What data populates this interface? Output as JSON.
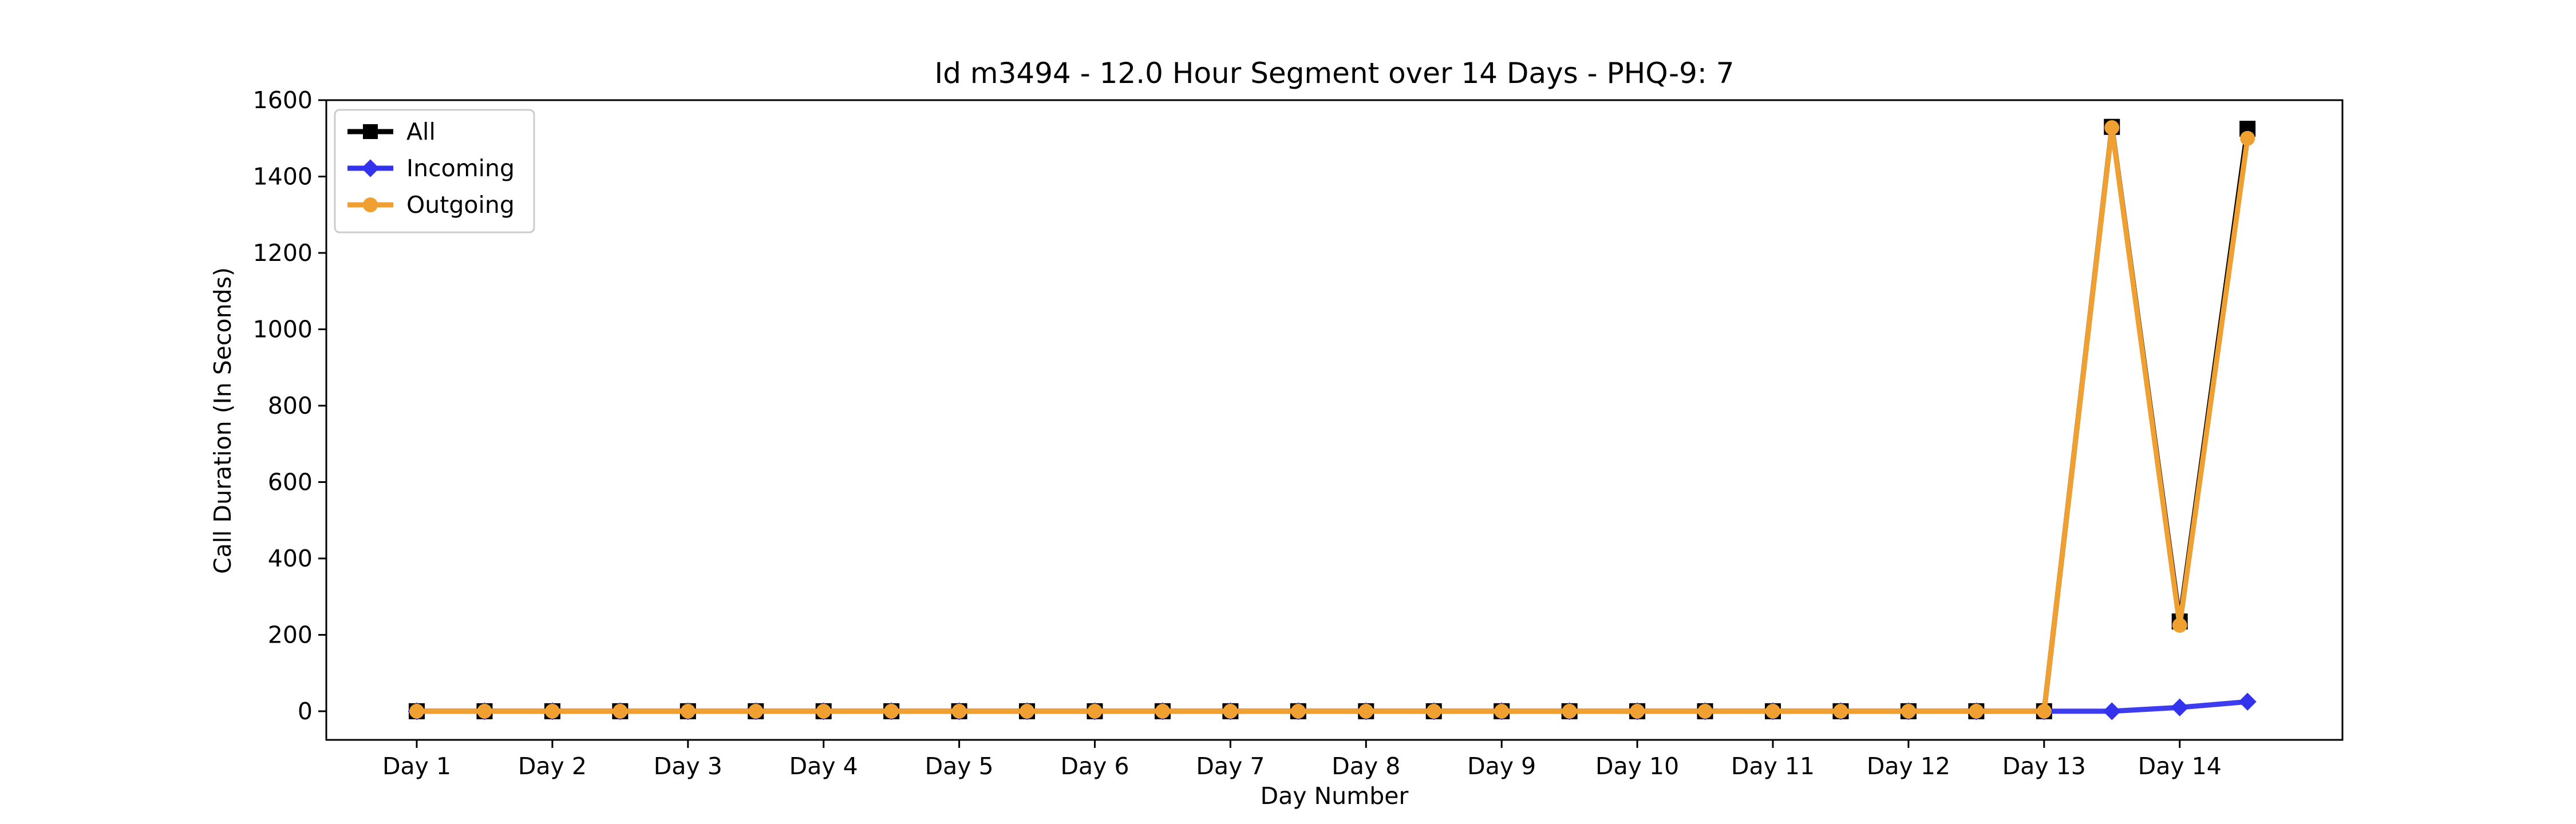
{
  "chart_data": {
    "type": "line",
    "title": "Id m3494 - 12.0 Hour Segment over 14 Days - PHQ-9: 7",
    "xlabel": "Day Number",
    "ylabel": "Call Duration (In Seconds)",
    "ylim": [
      -75,
      1600
    ],
    "yticks": [
      0,
      200,
      400,
      600,
      800,
      1000,
      1200,
      1400,
      1600
    ],
    "xtick_labels": [
      "Day 1",
      "Day 2",
      "Day 3",
      "Day 4",
      "Day 5",
      "Day 6",
      "Day 7",
      "Day 8",
      "Day 9",
      "Day 10",
      "Day 11",
      "Day 12",
      "Day 13",
      "Day 14"
    ],
    "x": [
      1,
      1.5,
      2,
      2.5,
      3,
      3.5,
      4,
      4.5,
      5,
      5.5,
      6,
      6.5,
      7,
      7.5,
      8,
      8.5,
      9,
      9.5,
      10,
      10.5,
      11,
      11.5,
      12,
      12.5,
      13,
      13.5,
      14,
      14.5
    ],
    "series": [
      {
        "name": "All",
        "color": "#000000",
        "marker": "square",
        "values": [
          0,
          0,
          0,
          0,
          0,
          0,
          0,
          0,
          0,
          0,
          0,
          0,
          0,
          0,
          0,
          0,
          0,
          0,
          0,
          0,
          0,
          0,
          0,
          0,
          0,
          1530,
          235,
          1525
        ]
      },
      {
        "name": "Incoming",
        "color": "#3333ee",
        "marker": "diamond",
        "values": [
          0,
          0,
          0,
          0,
          0,
          0,
          0,
          0,
          0,
          0,
          0,
          0,
          0,
          0,
          0,
          0,
          0,
          0,
          0,
          0,
          0,
          0,
          0,
          0,
          0,
          0,
          10,
          25
        ]
      },
      {
        "name": "Outgoing",
        "color": "#f0a030",
        "marker": "circle",
        "values": [
          0,
          0,
          0,
          0,
          0,
          0,
          0,
          0,
          0,
          0,
          0,
          0,
          0,
          0,
          0,
          0,
          0,
          0,
          0,
          0,
          0,
          0,
          0,
          0,
          0,
          1528,
          225,
          1500
        ]
      }
    ],
    "grid": false,
    "legend_position": "top-left"
  }
}
